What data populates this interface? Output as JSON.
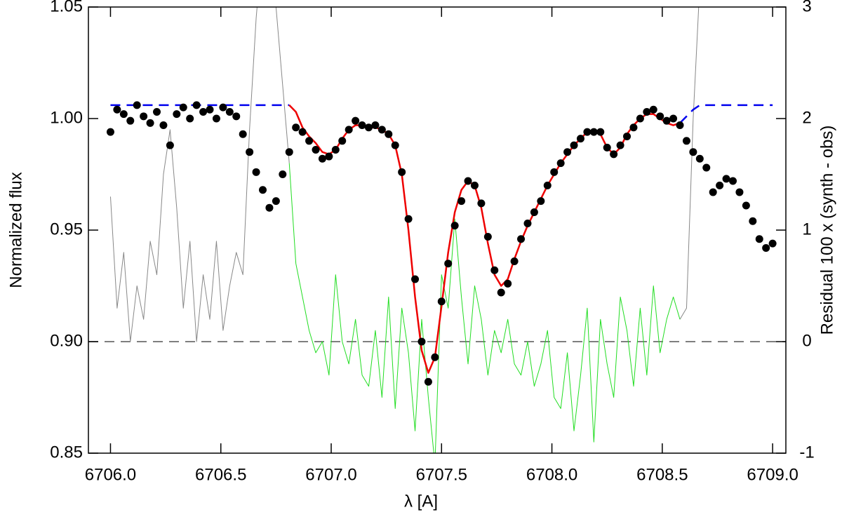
{
  "chart_data": {
    "type": "line",
    "xlabel": "λ [A]",
    "ylabel": "Normalized flux",
    "y2label": "Residual 100 x (synth - obs)",
    "xlim": [
      6705.9,
      6709.06
    ],
    "ylim": [
      0.85,
      1.05
    ],
    "y2lim": [
      -1,
      3
    ],
    "xticks": [
      {
        "value": 6706,
        "label": "6706.0"
      },
      {
        "value": 6706.5,
        "label": "6706.5"
      },
      {
        "value": 6707,
        "label": "6707.0"
      },
      {
        "value": 6707.5,
        "label": "6707.5"
      },
      {
        "value": 6708,
        "label": "6708.0"
      },
      {
        "value": 6708.5,
        "label": "6708.5"
      },
      {
        "value": 6709,
        "label": "6709.0"
      }
    ],
    "yticks": [
      0.85,
      {
        "value": 0.9,
        "label": "0.90"
      },
      0.95,
      {
        "value": 1,
        "label": "1.00"
      },
      1.05
    ],
    "y2ticks": [
      -1,
      0,
      1,
      2,
      3
    ],
    "reference_line": {
      "axis": "y2",
      "value": 0,
      "color": "#555555"
    },
    "x": [
      6706.0,
      6706.03,
      6706.06,
      6706.09,
      6706.12,
      6706.15,
      6706.18,
      6706.21,
      6706.24,
      6706.27,
      6706.3,
      6706.33,
      6706.36,
      6706.39,
      6706.42,
      6706.45,
      6706.48,
      6706.51,
      6706.54,
      6706.57,
      6706.6,
      6706.63,
      6706.66,
      6706.69,
      6706.72,
      6706.75,
      6706.78,
      6706.81,
      6706.84,
      6706.87,
      6706.9,
      6706.93,
      6706.96,
      6706.99,
      6707.02,
      6707.05,
      6707.08,
      6707.11,
      6707.14,
      6707.17,
      6707.2,
      6707.23,
      6707.26,
      6707.29,
      6707.32,
      6707.35,
      6707.38,
      6707.41,
      6707.44,
      6707.47,
      6707.5,
      6707.53,
      6707.56,
      6707.59,
      6707.62,
      6707.65,
      6707.68,
      6707.71,
      6707.74,
      6707.77,
      6707.8,
      6707.83,
      6707.86,
      6707.89,
      6707.92,
      6707.95,
      6707.98,
      6708.01,
      6708.04,
      6708.07,
      6708.1,
      6708.13,
      6708.16,
      6708.19,
      6708.22,
      6708.25,
      6708.28,
      6708.31,
      6708.34,
      6708.37,
      6708.4,
      6708.43,
      6708.46,
      6708.49,
      6708.52,
      6708.55,
      6708.58,
      6708.61,
      6708.64,
      6708.67,
      6708.7,
      6708.73,
      6708.76,
      6708.79,
      6708.82,
      6708.85,
      6708.88,
      6708.91,
      6708.94,
      6708.97,
      6709.0
    ],
    "series": [
      {
        "style": "gray-line",
        "color": "#888888",
        "axis": "y2",
        "values": [
          1.3,
          0.3,
          0.8,
          0.0,
          0.5,
          0.2,
          0.9,
          0.6,
          1.5,
          1.9,
          1.2,
          0.3,
          0.9,
          0.0,
          0.6,
          0.2,
          0.9,
          0.1,
          0.5,
          0.8,
          0.6,
          1.9,
          2.9,
          3.6,
          3.6,
          3.0,
          2.3,
          1.6,
          null,
          null,
          null,
          null,
          null,
          null,
          null,
          null,
          null,
          null,
          null,
          null,
          null,
          null,
          null,
          null,
          null,
          null,
          null,
          null,
          null,
          null,
          null,
          null,
          null,
          null,
          null,
          null,
          null,
          null,
          null,
          null,
          null,
          null,
          null,
          null,
          null,
          null,
          null,
          null,
          null,
          null,
          null,
          null,
          null,
          null,
          null,
          null,
          null,
          null,
          null,
          null,
          null,
          null,
          null,
          null,
          null,
          null,
          0.2,
          0.3,
          2.0,
          3.2,
          3.6,
          null,
          null,
          null,
          null,
          null,
          null,
          null,
          null,
          null,
          null
        ]
      },
      {
        "style": "line",
        "color": "#22dd22",
        "axis": "y2",
        "values": [
          null,
          null,
          null,
          null,
          null,
          null,
          null,
          null,
          null,
          null,
          null,
          null,
          null,
          null,
          null,
          null,
          null,
          null,
          null,
          null,
          null,
          null,
          null,
          null,
          null,
          null,
          null,
          1.6,
          0.7,
          0.4,
          0.1,
          -0.1,
          0.0,
          -0.3,
          0.6,
          0.0,
          -0.2,
          0.2,
          -0.3,
          -0.4,
          0.1,
          -0.5,
          0.4,
          -0.6,
          0.3,
          -0.1,
          -0.8,
          0.2,
          -0.5,
          -1.1,
          0.6,
          0.3,
          1.1,
          0.4,
          -0.2,
          0.5,
          0.2,
          -0.3,
          0.1,
          -0.1,
          0.2,
          -0.2,
          -0.3,
          0.0,
          -0.4,
          -0.2,
          0.1,
          -0.5,
          -0.6,
          -0.1,
          -0.8,
          -0.3,
          0.3,
          -0.9,
          0.2,
          -0.2,
          -0.5,
          0.4,
          0.1,
          -0.4,
          0.3,
          -0.3,
          0.5,
          -0.1,
          0.2,
          0.4,
          0.2,
          null,
          null,
          null,
          null,
          null,
          null,
          null,
          null,
          null,
          null,
          null,
          null,
          null,
          null
        ]
      },
      {
        "style": "dashed",
        "color": "#0000ee",
        "values": [
          1.006,
          1.006,
          1.006,
          1.006,
          1.006,
          1.006,
          1.006,
          1.006,
          1.006,
          1.006,
          1.006,
          1.006,
          1.006,
          1.006,
          1.006,
          1.006,
          1.006,
          1.006,
          1.006,
          1.006,
          1.006,
          1.006,
          1.006,
          1.006,
          1.006,
          1.006,
          1.006,
          1.006,
          null,
          null,
          null,
          null,
          null,
          null,
          null,
          null,
          null,
          null,
          null,
          null,
          null,
          null,
          null,
          null,
          null,
          null,
          null,
          null,
          null,
          null,
          null,
          null,
          null,
          null,
          null,
          null,
          null,
          null,
          null,
          null,
          null,
          null,
          null,
          null,
          null,
          null,
          null,
          null,
          null,
          null,
          null,
          null,
          null,
          null,
          null,
          null,
          null,
          null,
          null,
          null,
          null,
          null,
          null,
          null,
          null,
          null,
          0.998,
          1.001,
          1.004,
          1.006,
          1.006,
          1.006,
          1.006,
          1.006,
          1.006,
          1.006,
          1.006,
          1.006,
          1.006,
          1.006,
          1.006
        ]
      },
      {
        "style": "line",
        "color": "#ee0000",
        "values": [
          null,
          null,
          null,
          null,
          null,
          null,
          null,
          null,
          null,
          null,
          null,
          null,
          null,
          null,
          null,
          null,
          null,
          null,
          null,
          null,
          null,
          null,
          null,
          null,
          null,
          null,
          null,
          1.006,
          1.003,
          0.996,
          0.992,
          0.989,
          0.985,
          0.984,
          0.986,
          0.991,
          0.995,
          0.997,
          0.997,
          0.996,
          0.996,
          0.995,
          0.993,
          0.988,
          0.975,
          0.95,
          0.92,
          0.896,
          0.886,
          0.893,
          0.916,
          0.94,
          0.958,
          0.968,
          0.972,
          0.97,
          0.96,
          0.944,
          0.93,
          0.925,
          0.928,
          0.937,
          0.945,
          0.952,
          0.958,
          0.964,
          0.97,
          0.975,
          0.98,
          0.984,
          0.988,
          0.991,
          0.994,
          0.995,
          0.993,
          0.987,
          0.984,
          0.987,
          0.993,
          0.997,
          1.0,
          1.002,
          1.002,
          1.0,
          0.998,
          0.997,
          0.998,
          null,
          null,
          null,
          null,
          null,
          null,
          null,
          null,
          null,
          null,
          null,
          null,
          null,
          null
        ]
      },
      {
        "style": "dots",
        "color": "#000000",
        "values": [
          0.994,
          1.004,
          1.002,
          0.999,
          1.006,
          1.001,
          0.998,
          1.003,
          0.997,
          0.988,
          1.002,
          1.005,
          1.0,
          1.006,
          1.003,
          1.004,
          1.0,
          1.005,
          1.003,
          1.001,
          0.993,
          0.985,
          0.976,
          0.968,
          0.96,
          0.963,
          0.975,
          0.985,
          0.996,
          0.994,
          0.99,
          0.986,
          0.982,
          0.983,
          0.986,
          0.99,
          0.995,
          0.999,
          0.997,
          0.996,
          0.997,
          0.995,
          0.993,
          0.988,
          0.976,
          0.955,
          0.928,
          0.9,
          0.882,
          0.893,
          0.918,
          0.935,
          0.952,
          0.963,
          0.972,
          0.97,
          0.962,
          0.947,
          0.932,
          0.922,
          0.926,
          0.936,
          0.946,
          0.953,
          0.958,
          0.963,
          0.97,
          0.976,
          0.98,
          0.985,
          0.988,
          0.991,
          0.994,
          0.994,
          0.994,
          0.987,
          0.984,
          0.988,
          0.992,
          0.996,
          1.0,
          1.003,
          1.004,
          1.001,
          0.999,
          1.0,
          0.997,
          0.99,
          0.985,
          0.982,
          0.978,
          0.967,
          0.97,
          0.973,
          0.972,
          0.967,
          0.961,
          0.954,
          0.946,
          0.942,
          0.944
        ]
      }
    ]
  }
}
